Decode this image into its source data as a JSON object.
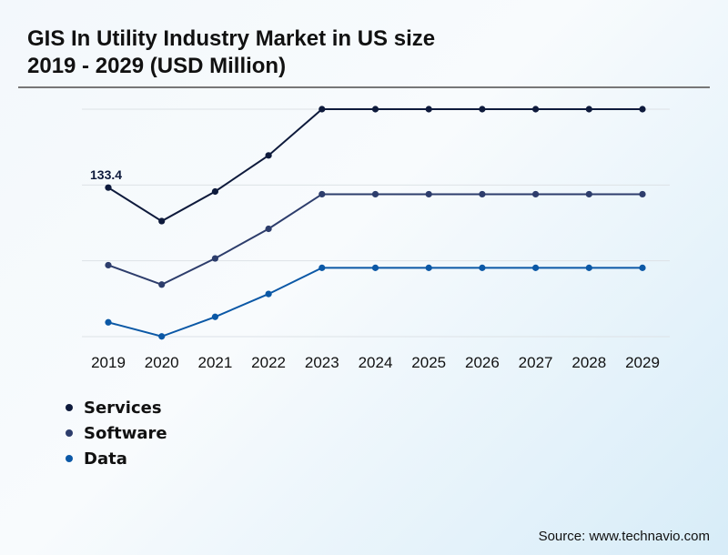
{
  "title_line1": "GIS In Utility Industry Market in US size",
  "title_line2": "2019 - 2029 (USD Million)",
  "source": "Source: www.technavio.com",
  "chart_data": {
    "type": "line",
    "title": "GIS In Utility Industry Market in US size 2019 - 2029 (USD Million)",
    "x": [
      "2019",
      "2020",
      "2021",
      "2022",
      "2023",
      "2024",
      "2025",
      "2026",
      "2027",
      "2028",
      "2029"
    ],
    "ylim": [
      0,
      203.6
    ],
    "grid": true,
    "legend_placement": "bottom-left",
    "annotations": [
      {
        "series": "Services",
        "x": "2019",
        "label": "133.4"
      }
    ],
    "series": [
      {
        "name": "Services",
        "color": "#0e1a3c",
        "values": [
          133.4,
          103.4,
          129.9,
          162.2,
          203.6,
          203.6,
          203.6,
          203.6,
          203.6,
          203.6,
          203.6
        ]
      },
      {
        "name": "Software",
        "color": "#2d3d6c",
        "values": [
          64.0,
          46.6,
          70.0,
          96.5,
          127.5,
          127.5,
          127.5,
          127.5,
          127.5,
          127.5,
          127.5
        ]
      },
      {
        "name": "Data",
        "color": "#0b58a6",
        "values": [
          12.8,
          0.2,
          17.7,
          38.2,
          61.6,
          61.6,
          61.6,
          61.6,
          61.6,
          61.6,
          61.6
        ]
      }
    ]
  }
}
